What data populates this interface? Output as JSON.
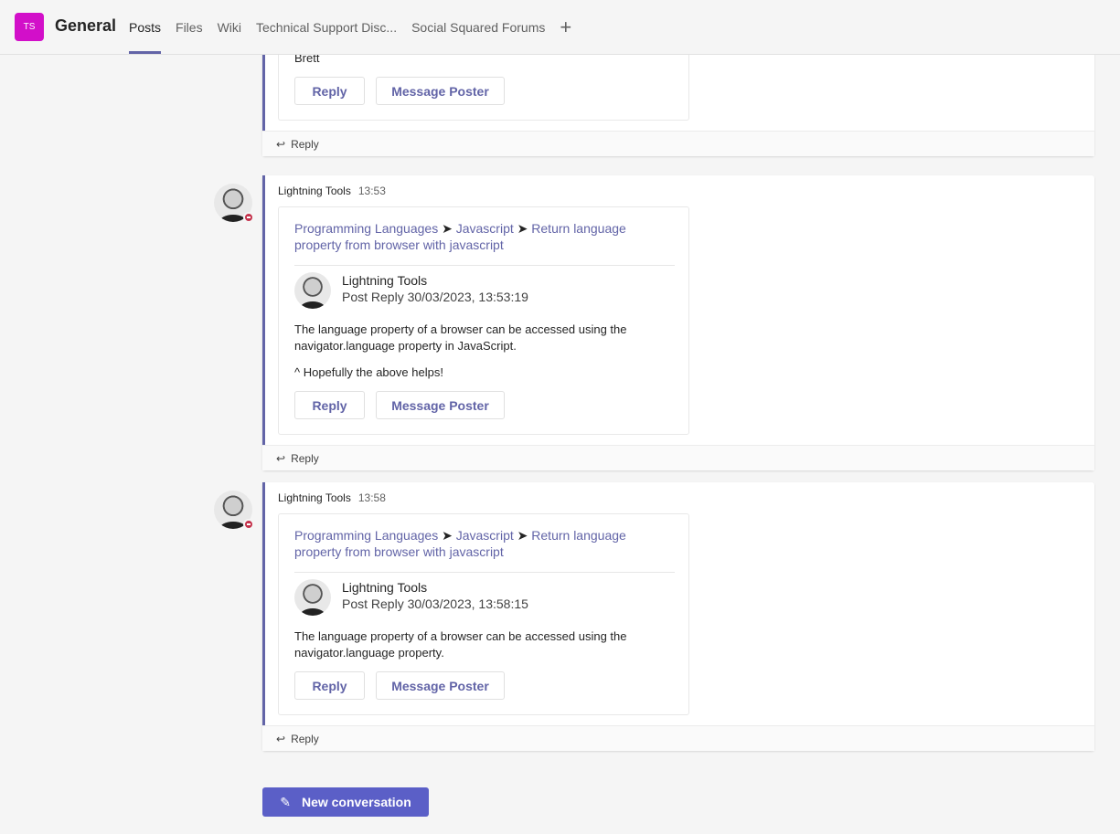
{
  "header": {
    "team_initials": "TS",
    "team_color": "#d20fc9",
    "channel": "General",
    "tabs": [
      {
        "label": "Posts",
        "active": true
      },
      {
        "label": "Files"
      },
      {
        "label": "Wiki"
      },
      {
        "label": "Technical Support Disc..."
      },
      {
        "label": "Social Squared Forums"
      }
    ],
    "add_tab_icon": "plus-icon"
  },
  "partial_thread": {
    "body_tail": "Brett",
    "reply_label": "Reply",
    "message_poster_label": "Message Poster",
    "thread_reply": "Reply"
  },
  "threads": [
    {
      "sender": "Lightning Tools",
      "time": "13:53",
      "crumb": {
        "a": "Programming Languages",
        "b": "Javascript",
        "c": "Return language property from browser with javascript",
        "sep": "➤"
      },
      "author": "Lightning Tools",
      "subtitle": "Post Reply 30/03/2023, 13:53:19",
      "paragraphs": [
        "The language property of a browser can be accessed using the navigator.language property in JavaScript.",
        "^ Hopefully the above helps!"
      ],
      "reply_label": "Reply",
      "message_poster_label": "Message Poster",
      "thread_reply": "Reply"
    },
    {
      "sender": "Lightning Tools",
      "time": "13:58",
      "crumb": {
        "a": "Programming Languages",
        "b": "Javascript",
        "c": "Return language property from browser with javascript",
        "sep": "➤"
      },
      "author": "Lightning Tools",
      "subtitle": "Post Reply 30/03/2023, 13:58:15",
      "paragraphs": [
        "The language property of a browser can be accessed using the navigator.language property."
      ],
      "reply_label": "Reply",
      "message_poster_label": "Message Poster",
      "thread_reply": "Reply"
    }
  ],
  "new_conversation": "New conversation",
  "accent": "#6264a7"
}
